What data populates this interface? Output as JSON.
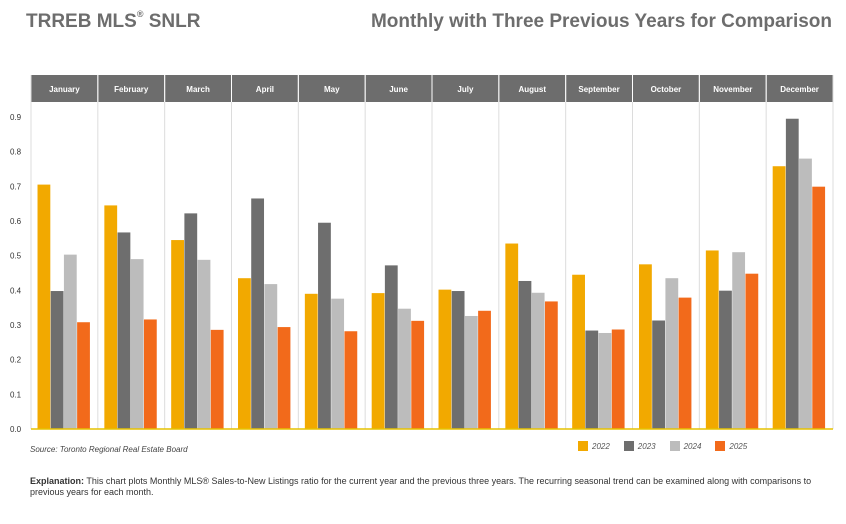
{
  "header": {
    "left_title": "TRREB MLS",
    "left_title_reg": "®",
    "left_title_suffix": " SNLR",
    "right_title": "Monthly with Three Previous Years for Comparison"
  },
  "footer": {
    "source": "Source: Toronto Regional Real Estate Board",
    "explanation_label": "Explanation:",
    "explanation_text": " This chart plots Monthly MLS® Sales-to-New Listings ratio for the current year and the previous three years. The recurring seasonal trend can be examined along with comparisons to previous years for each month."
  },
  "colors": {
    "2022": "#f2a900",
    "2023": "#6e6e6e",
    "2024": "#bcbcbc",
    "2025": "#f26a1b",
    "header_band": "#6d6d6d",
    "axis_line": "#e6c200"
  },
  "chart_data": {
    "type": "bar",
    "title": "Monthly with Three Previous Years for Comparison",
    "categories": [
      "January",
      "February",
      "March",
      "April",
      "May",
      "June",
      "July",
      "August",
      "September",
      "October",
      "November",
      "December"
    ],
    "series": [
      {
        "name": "2022",
        "values": [
          0.705,
          0.645,
          0.545,
          0.435,
          0.39,
          0.392,
          0.402,
          0.535,
          0.445,
          0.475,
          0.515,
          0.758
        ]
      },
      {
        "name": "2023",
        "values": [
          0.398,
          0.567,
          0.622,
          0.665,
          0.595,
          0.472,
          0.398,
          0.427,
          0.284,
          0.313,
          0.399,
          0.895
        ]
      },
      {
        "name": "2024",
        "values": [
          0.503,
          0.49,
          0.488,
          0.418,
          0.376,
          0.347,
          0.326,
          0.393,
          0.277,
          0.435,
          0.51,
          0.78
        ]
      },
      {
        "name": "2025",
        "values": [
          0.308,
          0.316,
          0.286,
          0.294,
          0.282,
          0.312,
          0.341,
          0.368,
          0.287,
          0.379,
          0.448,
          0.699
        ]
      }
    ],
    "yticks": [
      "0.0",
      "0.1",
      "0.2",
      "0.3",
      "0.4",
      "0.5",
      "0.6",
      "0.7",
      "0.8",
      "0.9"
    ],
    "ylim": [
      0,
      0.9
    ],
    "legend": [
      "2022",
      "2023",
      "2024",
      "2025"
    ],
    "legend_position": "bottom-right"
  }
}
